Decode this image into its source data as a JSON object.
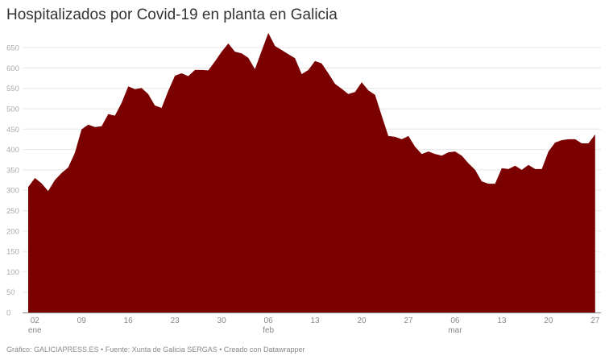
{
  "chart_data": {
    "type": "area",
    "title": "Hospitalizados por Covid-19 en planta en Galicia",
    "xlabel": "",
    "ylabel": "",
    "ylim": [
      0,
      690
    ],
    "grid": true,
    "color": "#7b0000",
    "y_ticks": [
      0,
      50,
      100,
      150,
      200,
      250,
      300,
      350,
      400,
      450,
      500,
      550,
      600,
      650
    ],
    "x_ticks": [
      {
        "day": 1,
        "label": "02",
        "month": "ene"
      },
      {
        "day": 8,
        "label": "09",
        "month": ""
      },
      {
        "day": 15,
        "label": "16",
        "month": ""
      },
      {
        "day": 22,
        "label": "23",
        "month": ""
      },
      {
        "day": 29,
        "label": "30",
        "month": ""
      },
      {
        "day": 36,
        "label": "06",
        "month": "feb"
      },
      {
        "day": 43,
        "label": "13",
        "month": ""
      },
      {
        "day": 50,
        "label": "20",
        "month": ""
      },
      {
        "day": 57,
        "label": "27",
        "month": ""
      },
      {
        "day": 64,
        "label": "06",
        "month": "mar"
      },
      {
        "day": 71,
        "label": "13",
        "month": ""
      },
      {
        "day": 78,
        "label": "20",
        "month": ""
      },
      {
        "day": 85,
        "label": "27",
        "month": ""
      }
    ],
    "values": [
      308,
      330,
      317,
      298,
      325,
      342,
      356,
      392,
      449,
      461,
      455,
      457,
      487,
      483,
      514,
      555,
      548,
      551,
      536,
      508,
      502,
      544,
      581,
      587,
      580,
      595,
      595,
      594,
      616,
      640,
      660,
      640,
      636,
      625,
      597,
      642,
      686,
      654,
      644,
      634,
      624,
      585,
      595,
      617,
      611,
      587,
      561,
      549,
      536,
      541,
      565,
      545,
      534,
      483,
      433,
      431,
      425,
      433,
      407,
      389,
      395,
      389,
      385,
      393,
      395,
      385,
      366,
      350,
      322,
      316,
      316,
      354,
      352,
      360,
      350,
      362,
      352,
      352,
      395,
      417,
      423,
      425,
      425,
      415,
      415,
      437
    ]
  },
  "footer": "Gráfico: GALICIAPRESS.ES • Fuente: Xunta de Galicia SERGAS • Creado con Datawrapper"
}
